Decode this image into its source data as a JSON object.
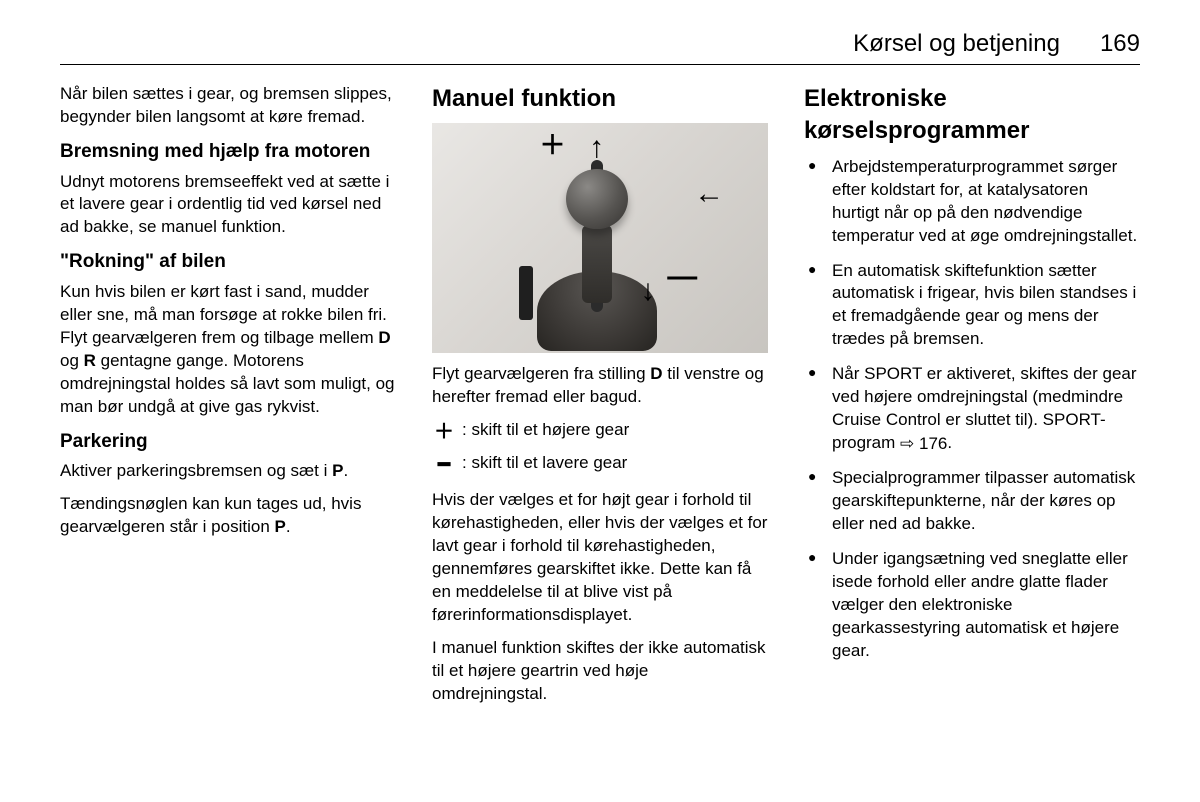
{
  "header": {
    "title": "Kørsel og betjening",
    "page": "169"
  },
  "col1": {
    "p1": "Når bilen sættes i gear, og bremsen slippes, begynder bilen langsomt at køre fremad.",
    "h_brems": "Bremsning med hjælp fra motoren",
    "p_brems": "Udnyt motorens bremseeffekt ved at sætte i et lavere gear i ordentlig tid ved kørsel ned ad bakke, se manuel funktion.",
    "h_rok": "\"Rokning\" af bilen",
    "p_rok_a": "Kun hvis bilen er kørt fast i sand, mud­der eller sne, må man forsøge at rokke bilen fri. Flyt gearvælgeren frem og tilbage mellem ",
    "p_rok_d": "D",
    "p_rok_mid": " og ",
    "p_rok_r": "R",
    "p_rok_b": " gentagne gange. Motorens omdrejningstal hol­des så lavt som muligt, og man bør undgå at give gas rykvist.",
    "h_park": "Parkering",
    "p_park1_a": "Aktiver parkeringsbremsen og sæt i ",
    "p_park1_p": "P",
    "p_park1_b": ".",
    "p_park2_a": "Tændingsnøglen kan kun tages ud, hvis gearvælgeren står i position ",
    "p_park2_p": "P",
    "p_park2_b": "."
  },
  "col2": {
    "h_man": "Manuel funktion",
    "p_shift_a": "Flyt gearvælgeren fra stilling ",
    "p_shift_d": "D",
    "p_shift_b": " til ven­stre og herefter fremad eller bagud.",
    "plus_sym": "＋",
    "plus_txt": ": skift til et højere gear",
    "minus_sym": "━",
    "minus_txt": ": skift til et lavere gear",
    "p_warn": "Hvis der vælges et for højt gear i for­hold til kørehastigheden, eller hvis der vælges et for lavt gear i forhold til kørehastigheden, gennemføres gear­skiftet ikke. Dette kan få en medde­lelse til at blive vist på førerinformationsdisplayet.",
    "p_auto": "I manuel funktion skiftes der ikke automatisk til et højere geartrin ved høje omdrejningstal."
  },
  "col3": {
    "h_elek": "Elektroniske kørselsprogrammer",
    "b1": "Arbejdstemperaturprogrammet sørger efter koldstart for, at kata­lysatoren hurtigt når op på den nødvendige temperatur ved at øge omdrejningstallet.",
    "b2": "En automatisk skiftefunktion sæt­ter automatisk i frigear, hvis bilen standses i et fremadgående gear og mens der trædes på bremsen.",
    "b3_a": "Når SPORT er aktiveret, skiftes der gear ved højere omdrejnings­tal (medmindre Cruise Control er sluttet til). SPORT-program ",
    "b3_ref": "⇨ 176",
    "b3_b": ".",
    "b4": "Specialprogrammer tilpasser automatisk gearskiftepunkterne, når der køres op eller ned ad bakke.",
    "b5": "Under igangsætning ved sne­glatte eller isede forhold eller an­dre glatte flader vælger den elektroniske gearkassestyring automatisk et højere gear."
  }
}
